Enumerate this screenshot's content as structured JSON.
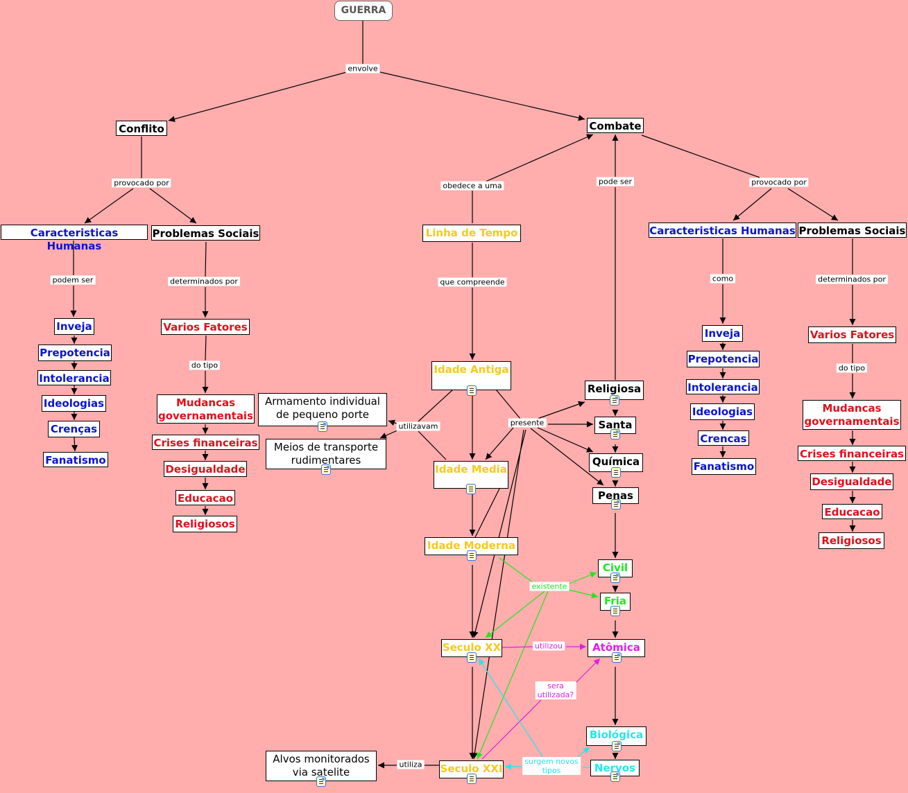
{
  "nodes": {
    "guerra": "GUERRA",
    "conflito": "Conflito",
    "combate": "Combate",
    "ch1": "Caracteristicas Humanas",
    "ps1": "Problemas Sociais",
    "inveja1": "Inveja",
    "prep1": "Prepotencia",
    "intol1": "Intolerancia",
    "ideo1": "Ideologias",
    "crencas1": "Crenças",
    "fanat1": "Fanatismo",
    "vf1": "Varios Fatores",
    "mud1": "Mudancas governamentais",
    "crises1": "Crises financeiras",
    "desig1": "Desigualdade",
    "educ1": "Educacao",
    "relig1": "Religiosos",
    "armamento": "Armamento individual de pequeno porte",
    "meios": "Meios de transporte rudimentares",
    "linha": "Linha de Tempo",
    "antiga": "Idade Antiga",
    "media": "Idade Media",
    "moderna": "Idade Moderna",
    "seculoxx": "Seculo XX",
    "seculoxxi": "Seculo XXI",
    "alvos": "Alvos monitorados via satelite",
    "religiosa": "Religiosa",
    "santa": "Santa",
    "quimica": "Química",
    "penas": "Penas",
    "civil": "Civil",
    "fria": "Fria",
    "atomica": "Atômica",
    "biologica": "Biológica",
    "nervos": "Nervos",
    "ch2": "Caracteristicas Humanas",
    "ps2": "Problemas Sociais",
    "inveja2": "Inveja",
    "prep2": "Prepotencia",
    "intol2": "Intolerancia",
    "ideo2": "Ideologias",
    "crencas2": "Crencas",
    "fanat2": "Fanatismo",
    "vf2": "Varios Fatores",
    "mud2": "Mudancas governamentais",
    "crises2": "Crises financeiras",
    "desig2": "Desigualdade",
    "educ2": "Educacao",
    "relig2": "Religiosos"
  },
  "links": {
    "envolve": "envolve",
    "prov1": "provocado por",
    "obedece": "obedece a uma",
    "podeser": "pode ser",
    "prov2": "provocado por",
    "podem": "podem ser",
    "det1": "determinados por",
    "compreende": "que compreende",
    "como": "como",
    "det2": "determinados por",
    "tipo1": "do tipo",
    "tipo2": "do tipo",
    "utilizavam": "utilizavam",
    "presente": "presente",
    "existente": "existente",
    "utilizou": "utilizou",
    "sera": "sera\nutilizada?",
    "surgem": "surgem novos\ntipos",
    "utiliza": "utiliza"
  },
  "colors": {
    "background": "#ffadad",
    "blue": "#0a14d2",
    "red": "#e0101a",
    "gold": "#f8c81c",
    "green": "#1ee81e",
    "magenta": "#e11ee1",
    "cyan": "#22e8ee"
  }
}
